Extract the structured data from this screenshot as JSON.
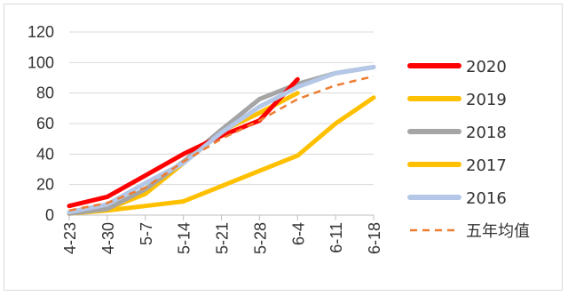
{
  "chart_data": {
    "type": "line",
    "categories": [
      "4-23",
      "4-30",
      "5-7",
      "5-14",
      "5-21",
      "5-28",
      "6-4",
      "6-11",
      "6-18"
    ],
    "ylim": [
      0,
      120
    ],
    "yticks": [
      0,
      20,
      40,
      60,
      80,
      100,
      120
    ],
    "grid": true,
    "legend_position": "right",
    "series": [
      {
        "name": "2017",
        "color": "#ffc000",
        "style": "solid",
        "values": [
          1,
          3,
          6,
          9,
          19,
          29,
          39,
          60,
          77
        ]
      },
      {
        "name": "2019",
        "color": "#ffc000",
        "style": "solid",
        "values": [
          2,
          4,
          14,
          34,
          55,
          67,
          80,
          null,
          null
        ]
      },
      {
        "name": "2018",
        "color": "#a5a5a5",
        "style": "solid",
        "values": [
          1,
          4,
          17,
          35,
          56,
          76,
          86,
          93,
          97
        ]
      },
      {
        "name": "2020",
        "color": "#ff0000",
        "style": "solid",
        "values": [
          6,
          12,
          26,
          40,
          52,
          62,
          89,
          null,
          null
        ]
      },
      {
        "name": "2016",
        "color": "#b4c7e7",
        "style": "solid",
        "values": [
          2,
          7,
          21,
          34,
          54,
          71,
          84,
          93,
          97
        ]
      },
      {
        "name": "五年均值",
        "color": "#ed7d31",
        "style": "dashed",
        "values": [
          3,
          8,
          18,
          35,
          50,
          62,
          76,
          85,
          91
        ]
      }
    ],
    "legend_order": [
      "2020",
      "2019",
      "2018",
      "2017",
      "2016",
      "五年均值"
    ]
  }
}
